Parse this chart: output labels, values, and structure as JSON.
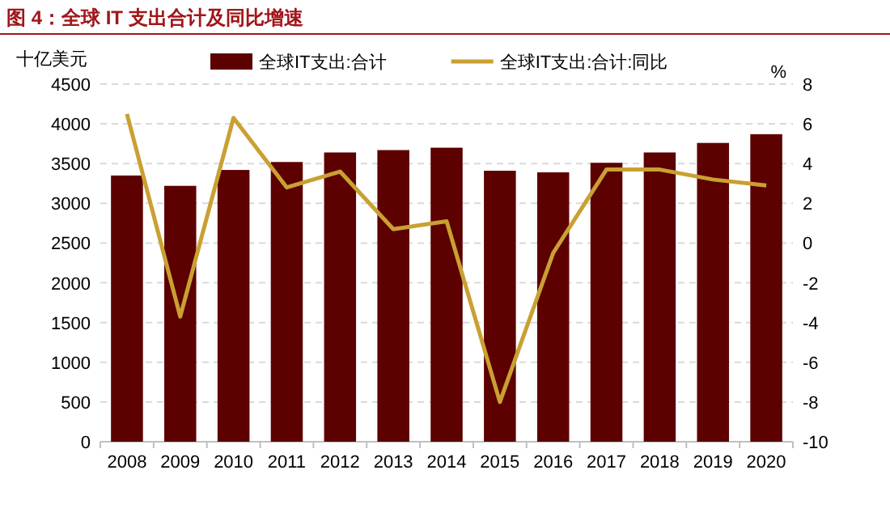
{
  "chart_data": {
    "type": "bar",
    "title": "图 4：全球 IT 支出合计及同比增速",
    "ylabel": "十亿美元",
    "y2label": "%",
    "categories": [
      "2008",
      "2009",
      "2010",
      "2011",
      "2012",
      "2013",
      "2014",
      "2015",
      "2016",
      "2017",
      "2018",
      "2019",
      "2020"
    ],
    "series": [
      {
        "name": "全球IT支出:合计",
        "color": "#5c0000",
        "values": [
          3350,
          3220,
          3420,
          3520,
          3640,
          3670,
          3700,
          3410,
          3390,
          3510,
          3640,
          3760,
          3870
        ]
      },
      {
        "name": "全球IT支出:合计:同比",
        "type": "line",
        "axis": "y2",
        "color": "#c9a032",
        "values": [
          6.5,
          -3.7,
          6.3,
          2.8,
          3.6,
          0.7,
          1.1,
          -8.0,
          -0.5,
          3.7,
          3.7,
          3.2,
          2.9
        ]
      }
    ],
    "ylim": [
      0,
      4500
    ],
    "yticks": [
      0,
      500,
      1000,
      1500,
      2000,
      2500,
      3000,
      3500,
      4000,
      4500
    ],
    "y2lim": [
      -10,
      8
    ],
    "y2ticks": [
      -10,
      -8,
      -6,
      -4,
      -2,
      0,
      2,
      4,
      6,
      8
    ],
    "grid": "y",
    "legend": "top"
  }
}
